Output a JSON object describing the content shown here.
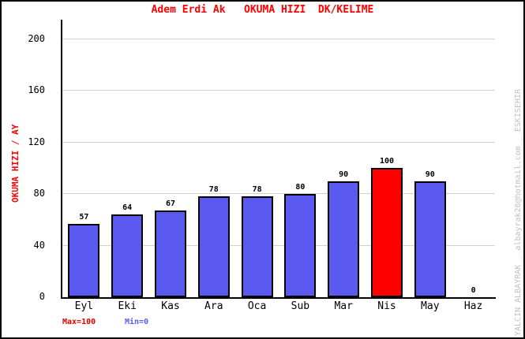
{
  "chart_data": {
    "type": "bar",
    "title": "Adem Erdi Ak   OKUMA HIZI  DK/KELIME",
    "title_color": "#FF0000",
    "ylabel": "OKUMA HIZI / AY",
    "ylabel_color": "#FF0000",
    "xlabel": "",
    "categories": [
      "Eyl",
      "Eki",
      "Kas",
      "Ara",
      "Oca",
      "Sub",
      "Mar",
      "Nis",
      "May",
      "Haz"
    ],
    "values": [
      57,
      64,
      67,
      78,
      78,
      80,
      90,
      100,
      90,
      0
    ],
    "bar_colors": [
      "#5A5AF0",
      "#5A5AF0",
      "#5A5AF0",
      "#5A5AF0",
      "#5A5AF0",
      "#5A5AF0",
      "#5A5AF0",
      "#FF0000",
      "#5A5AF0",
      "#5A5AF0"
    ],
    "bar_default_color": "#5A5AF0",
    "bar_highlight_color": "#FF0000",
    "highlight_index": 7,
    "bar_border_color": "#000000",
    "yticks": [
      0,
      40,
      80,
      120,
      160,
      200
    ],
    "ylim": [
      0,
      215
    ],
    "grid": true,
    "gridline_color": "#D0D0D0",
    "axis_color": "#000000",
    "tick_label_color": "#000000",
    "value_label_color": "#000000",
    "legend_position": "none",
    "annotations": {
      "max": {
        "text": "Max=100",
        "color": "#E00000"
      },
      "min": {
        "text": "Min=0",
        "color": "#5A5AF0"
      }
    }
  },
  "watermark": {
    "text": "YALCIN ALBAYRAK _ albayrak26@hotmail.com _ ESKISEHIR",
    "color": "#C0C0C0"
  }
}
